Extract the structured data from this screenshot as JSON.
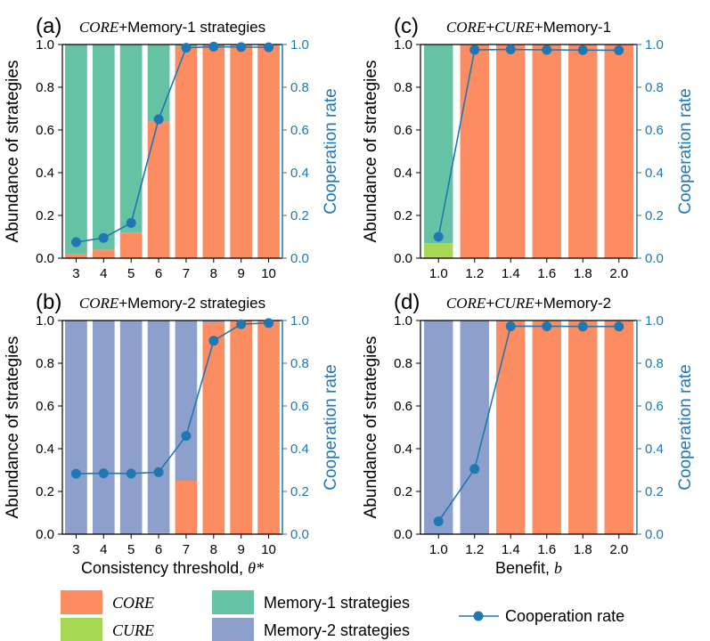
{
  "colors": {
    "core": "#FC8D62",
    "cure": "#A6D854",
    "mem1": "#66C2A5",
    "mem2": "#8DA0CB",
    "coop": "#1F77B4",
    "axis": "#000000"
  },
  "shared": {
    "y_left_label": "Abundance of strategies",
    "y_right_label": "Cooperation rate",
    "y_left_ticks": [
      "0.0",
      "0.2",
      "0.4",
      "0.6",
      "0.8",
      "1.0"
    ],
    "y_right_ticks": [
      "0.0",
      "0.2",
      "0.4",
      "0.6",
      "0.8",
      "1.0"
    ]
  },
  "xlabels": {
    "left": {
      "text": "Consistency threshold, ",
      "symbol": "θ*"
    },
    "right": {
      "text": "Benefit, ",
      "symbol": "b"
    }
  },
  "legend": {
    "core": "CORE",
    "cure": "CURE",
    "mem1": "Memory-1 strategies",
    "mem2": "Memory-2 strategies",
    "coop": "Cooperation rate"
  },
  "chart_data": [
    {
      "id": "a",
      "type": "bar",
      "label": "(a)",
      "title_parts": [
        {
          "t": "CORE",
          "i": true
        },
        {
          "t": "+Memory-1 strategies",
          "i": false
        }
      ],
      "categories": [
        "3",
        "4",
        "5",
        "6",
        "7",
        "8",
        "9",
        "10"
      ],
      "ylim": [
        0,
        1
      ],
      "stack_order": [
        "core",
        "cure",
        "other"
      ],
      "series": [
        {
          "name": "CORE",
          "key": "core",
          "values": [
            0.02,
            0.04,
            0.12,
            0.64,
            0.99,
            1.0,
            1.0,
            1.0
          ]
        },
        {
          "name": "CURE",
          "key": "cure",
          "values": [
            0,
            0,
            0,
            0,
            0,
            0,
            0,
            0
          ]
        },
        {
          "name": "Memory-1 strategies",
          "key": "mem1",
          "values": [
            0.98,
            0.96,
            0.88,
            0.36,
            0.01,
            0,
            0,
            0
          ]
        }
      ],
      "cooperation": [
        0.075,
        0.095,
        0.165,
        0.65,
        0.985,
        0.99,
        0.988,
        0.987
      ]
    },
    {
      "id": "b",
      "type": "bar",
      "label": "(b)",
      "title_parts": [
        {
          "t": "CORE",
          "i": true
        },
        {
          "t": "+Memory-2 strategies",
          "i": false
        }
      ],
      "categories": [
        "3",
        "4",
        "5",
        "6",
        "7",
        "8",
        "9",
        "10"
      ],
      "ylim": [
        0,
        1
      ],
      "series": [
        {
          "name": "CORE",
          "key": "core",
          "values": [
            0,
            0,
            0,
            0.005,
            0.25,
            0.99,
            1.0,
            1.0
          ]
        },
        {
          "name": "CURE",
          "key": "cure",
          "values": [
            0,
            0,
            0,
            0,
            0,
            0,
            0,
            0
          ]
        },
        {
          "name": "Memory-2 strategies",
          "key": "mem2",
          "values": [
            1.0,
            1.0,
            1.0,
            0.995,
            0.75,
            0.01,
            0,
            0
          ]
        }
      ],
      "cooperation": [
        0.283,
        0.285,
        0.284,
        0.29,
        0.46,
        0.905,
        0.983,
        0.988
      ]
    },
    {
      "id": "c",
      "type": "bar",
      "label": "(c)",
      "title_parts": [
        {
          "t": "CORE",
          "i": true
        },
        {
          "t": "+",
          "i": false
        },
        {
          "t": "CURE",
          "i": true
        },
        {
          "t": "+Memory-1",
          "i": false
        }
      ],
      "categories": [
        "1.0",
        "1.2",
        "1.4",
        "1.6",
        "1.8",
        "2.0"
      ],
      "ylim": [
        0,
        1
      ],
      "series": [
        {
          "name": "CORE",
          "key": "core",
          "values": [
            0.005,
            1.0,
            1.0,
            1.0,
            1.0,
            1.0
          ]
        },
        {
          "name": "CURE",
          "key": "cure",
          "values": [
            0.065,
            0,
            0,
            0,
            0,
            0
          ]
        },
        {
          "name": "Memory-1 strategies",
          "key": "mem1",
          "values": [
            0.93,
            0,
            0,
            0,
            0,
            0
          ]
        }
      ],
      "cooperation": [
        0.1,
        0.975,
        0.977,
        0.975,
        0.974,
        0.973
      ]
    },
    {
      "id": "d",
      "type": "bar",
      "label": "(d)",
      "title_parts": [
        {
          "t": "CORE",
          "i": true
        },
        {
          "t": "+",
          "i": false
        },
        {
          "t": "CURE",
          "i": true
        },
        {
          "t": "+Memory-2",
          "i": false
        }
      ],
      "categories": [
        "1.0",
        "1.2",
        "1.4",
        "1.6",
        "1.8",
        "2.0"
      ],
      "ylim": [
        0,
        1
      ],
      "series": [
        {
          "name": "CORE",
          "key": "core",
          "values": [
            0,
            0,
            1.0,
            1.0,
            1.0,
            1.0
          ]
        },
        {
          "name": "CURE",
          "key": "cure",
          "values": [
            0,
            0,
            0,
            0,
            0,
            0
          ]
        },
        {
          "name": "Memory-2 strategies",
          "key": "mem2",
          "values": [
            1.0,
            1.0,
            0,
            0,
            0,
            0
          ]
        }
      ],
      "cooperation": [
        0.06,
        0.305,
        0.973,
        0.973,
        0.972,
        0.972
      ]
    }
  ]
}
